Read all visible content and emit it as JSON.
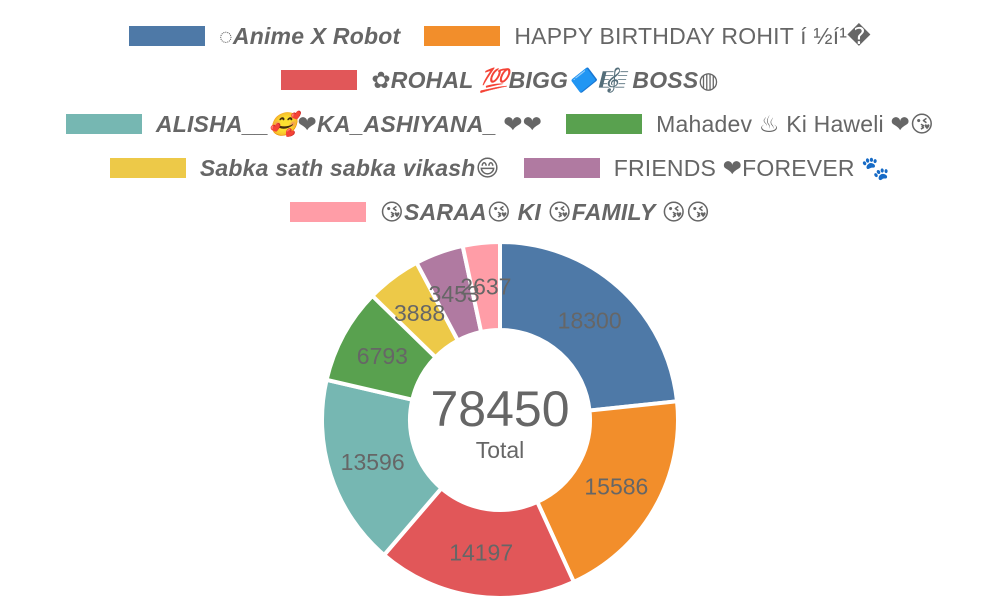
{
  "chart_data": {
    "type": "doughnut",
    "legend_position": "top",
    "categories": [
      "◌Anime X Robot",
      "HAPPY BIRTHDAY ROHIT í ½í¹�",
      "✿ROHAL 💯BIGG🔷🎼 BOSS◍",
      "ALISHA__🥰❤KA_ASHIYANA_ ❤❤",
      "Mahadev ♨ Ki Haweli ❤😘",
      "Sabka sath sabka vikash😄",
      "FRIENDS ❤FOREVER 🐾",
      "😘SARAA😘 KI 😘FAMILY 😘😘"
    ],
    "values": [
      18300,
      15586,
      14197,
      13596,
      6793,
      3888,
      3453,
      2637
    ],
    "colors": [
      "#4e79a7",
      "#f28e2b",
      "#e15759",
      "#76b7b2",
      "#59a14f",
      "#edc948",
      "#b07aa1",
      "#ff9da7"
    ],
    "total": {
      "value": "78450",
      "label": "Total"
    }
  }
}
